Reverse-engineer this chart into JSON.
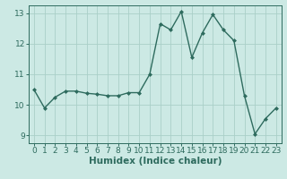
{
  "x": [
    0,
    1,
    2,
    3,
    4,
    5,
    6,
    7,
    8,
    9,
    10,
    11,
    12,
    13,
    14,
    15,
    16,
    17,
    18,
    19,
    20,
    21,
    22,
    23
  ],
  "y": [
    10.5,
    9.9,
    10.25,
    10.45,
    10.45,
    10.38,
    10.35,
    10.3,
    10.3,
    10.4,
    10.4,
    11.0,
    12.65,
    12.45,
    13.05,
    11.55,
    12.35,
    12.95,
    12.45,
    12.1,
    10.3,
    9.05,
    9.55,
    9.9
  ],
  "line_color": "#2e6b5e",
  "marker": "D",
  "marker_size": 2,
  "bg_color": "#cce9e4",
  "grid_color": "#aacfc8",
  "xlabel": "Humidex (Indice chaleur)",
  "ylim": [
    8.75,
    13.25
  ],
  "xlim": [
    -0.5,
    23.5
  ],
  "yticks": [
    9,
    10,
    11,
    12,
    13
  ],
  "xticks": [
    0,
    1,
    2,
    3,
    4,
    5,
    6,
    7,
    8,
    9,
    10,
    11,
    12,
    13,
    14,
    15,
    16,
    17,
    18,
    19,
    20,
    21,
    22,
    23
  ],
  "tick_fontsize": 6.5,
  "label_fontsize": 7.5,
  "axis_color": "#2e6b5e"
}
